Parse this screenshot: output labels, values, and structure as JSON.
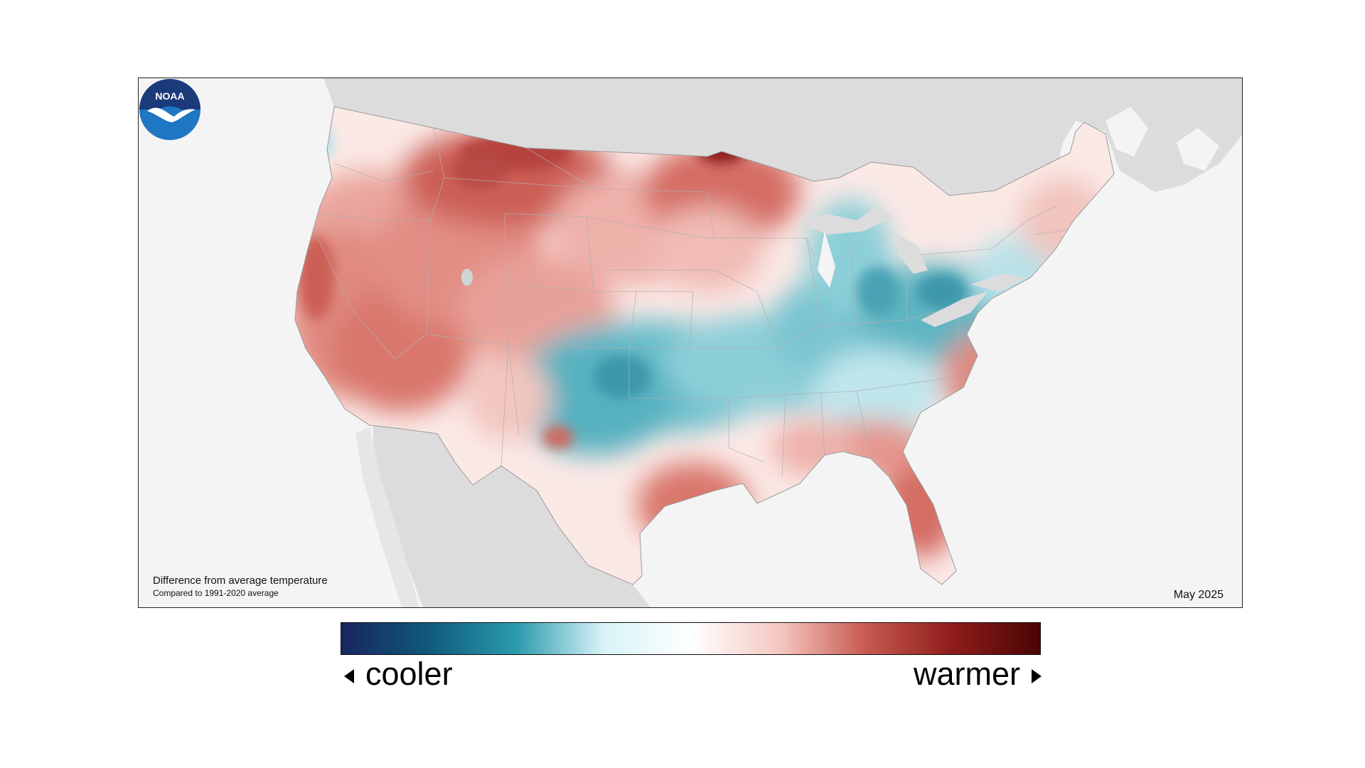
{
  "map": {
    "caption_title": "Difference from average temperature",
    "caption_subtitle": "Compared to 1991-2020 average",
    "date": "May 2025",
    "logo_text": "NOAA"
  },
  "legend": {
    "cool_label": "cooler",
    "warm_label": "warmer",
    "colors": [
      "#17255e",
      "#0f5a7d",
      "#2a9aac",
      "#d8f3f7",
      "#ffffff",
      "#f5c9c3",
      "#c85a50",
      "#8e1d1a",
      "#4a0505"
    ]
  },
  "colors": {
    "land_outside": "#dcdcdc",
    "water": "#f4f4f4",
    "warm": "#d9776c",
    "cool": "#3fa6b8",
    "hot": "#7a0f0f"
  }
}
